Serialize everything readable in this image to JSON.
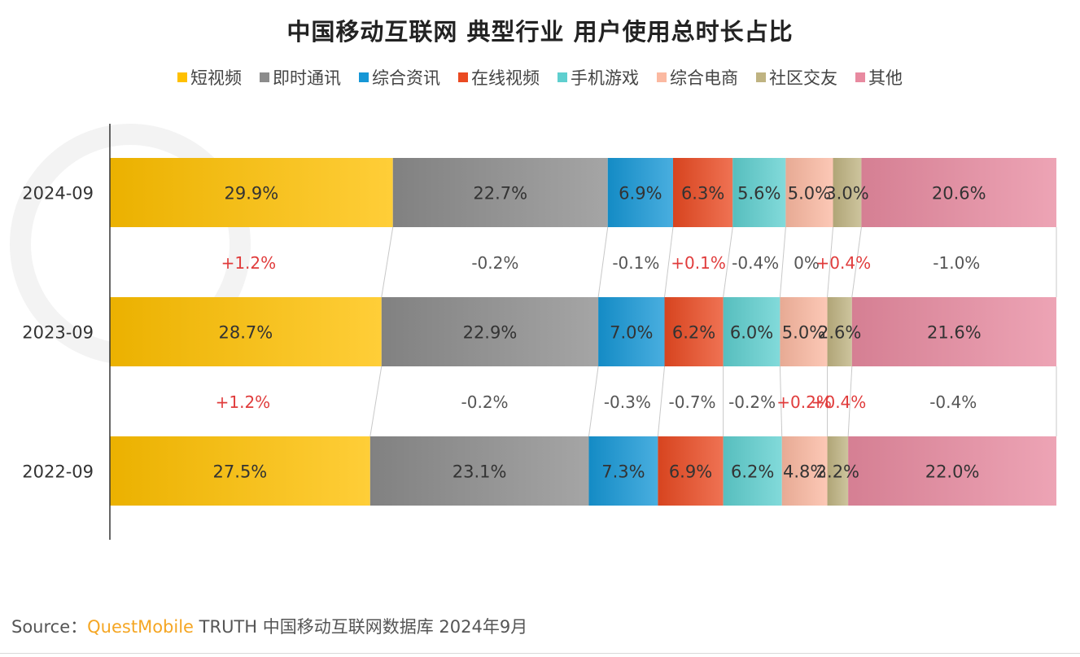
{
  "chart_data": {
    "type": "bar",
    "stacked": true,
    "orientation": "horizontal",
    "title": "中国移动互联网 典型行业 用户使用总时长占比",
    "categories": [
      "2024-09",
      "2023-09",
      "2022-09"
    ],
    "series": [
      {
        "name": "短视频",
        "values": [
          29.9,
          28.7,
          27.5
        ],
        "labels": [
          "29.9%",
          "28.7%",
          "27.5%"
        ],
        "color": "#ffc000"
      },
      {
        "name": "即时通讯",
        "values": [
          22.7,
          22.9,
          23.1
        ],
        "labels": [
          "22.7%",
          "22.9%",
          "23.1%"
        ],
        "color": "#8c8c8c"
      },
      {
        "name": "综合资讯",
        "values": [
          6.9,
          7.0,
          7.3
        ],
        "labels": [
          "6.9%",
          "7.0%",
          "7.3%"
        ],
        "color": "#1697d6"
      },
      {
        "name": "在线视频",
        "values": [
          6.3,
          6.2,
          6.9
        ],
        "labels": [
          "6.3%",
          "6.2%",
          "6.9%"
        ],
        "color": "#ea4a22"
      },
      {
        "name": "手机游戏",
        "values": [
          5.6,
          6.0,
          6.2
        ],
        "labels": [
          "5.6%",
          "6.0%",
          "6.2%"
        ],
        "color": "#5fcfcf"
      },
      {
        "name": "综合电商",
        "values": [
          5.0,
          5.0,
          4.8
        ],
        "labels": [
          "5.0%",
          "5.0%",
          "4.8%"
        ],
        "color": "#fbb9a1"
      },
      {
        "name": "社区交友",
        "values": [
          3.0,
          2.6,
          2.2
        ],
        "labels": [
          "3.0%",
          "2.6%",
          "2.2%"
        ],
        "color": "#bfb381"
      },
      {
        "name": "其他",
        "values": [
          20.6,
          21.6,
          22.0
        ],
        "labels": [
          "20.6%",
          "21.6%",
          "22.0%"
        ],
        "color": "#e88aa0"
      }
    ],
    "changes": [
      [
        "+1.2%",
        "-0.2%",
        "-0.1%",
        "+0.1%",
        "-0.4%",
        "0%",
        "+0.4%",
        "-1.0%"
      ],
      [
        "+1.2%",
        "-0.2%",
        "-0.3%",
        "-0.7%",
        "-0.2%",
        "+0.2%",
        "+0.4%",
        "-0.4%"
      ]
    ],
    "xlim": [
      0,
      100
    ],
    "legend_position": "top-center",
    "grid": false,
    "colors": {
      "positive_change": "#e03c3c",
      "negative_change": "#555555"
    }
  },
  "source": {
    "prefix": "Source：",
    "brand": "QuestMobile",
    "text": " TRUTH 中国移动互联网数据库 2024年9月"
  }
}
